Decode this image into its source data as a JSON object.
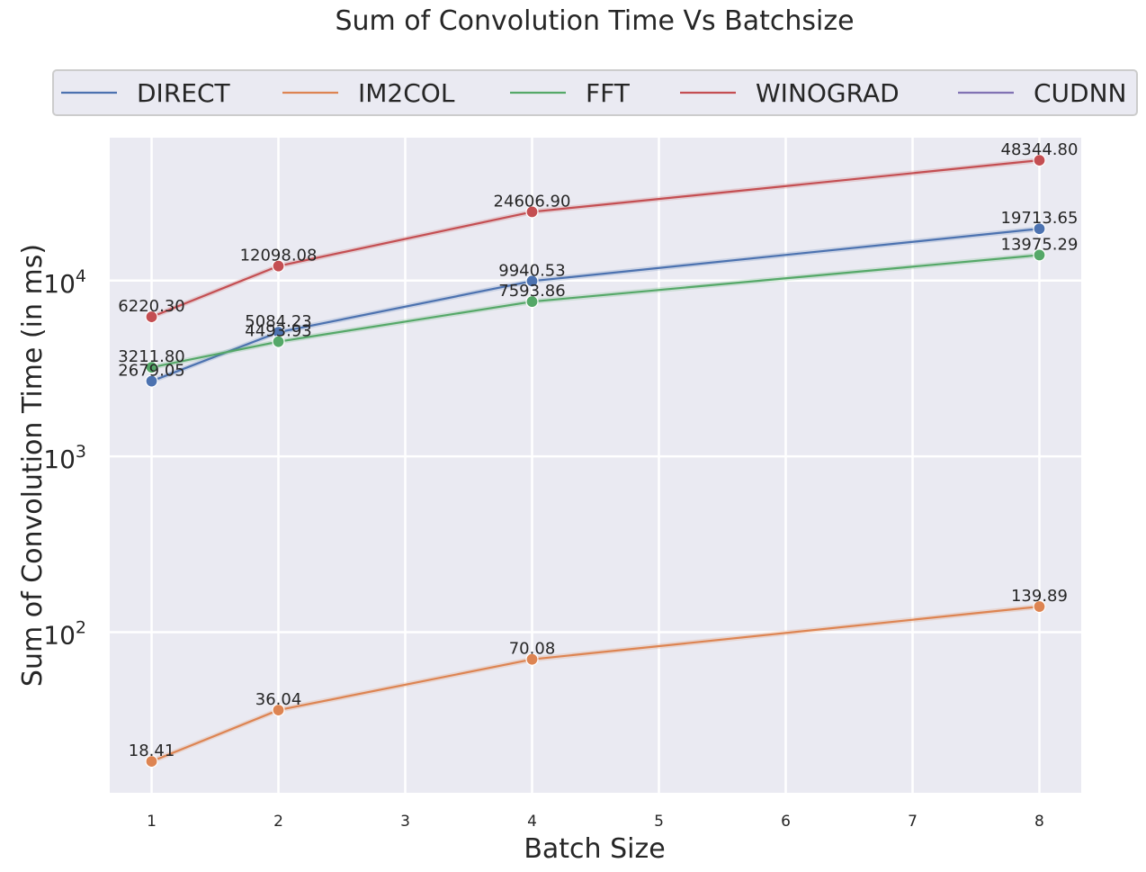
{
  "chart_data": {
    "type": "line",
    "title": "Sum of Convolution Time Vs Batchsize",
    "xlabel": "Batch Size",
    "ylabel": "Sum of Convolution Time (in ms)",
    "yscale": "log",
    "xlim": [
      0.67,
      8.33
    ],
    "ylim": [
      12.2,
      65000
    ],
    "x_ticks": [
      1,
      2,
      3,
      4,
      5,
      6,
      7,
      8
    ],
    "y_ticks": [
      {
        "value": 100,
        "base": "10",
        "exp": "2"
      },
      {
        "value": 1000,
        "base": "10",
        "exp": "3"
      },
      {
        "value": 10000,
        "base": "10",
        "exp": "4"
      }
    ],
    "grid": true,
    "legend_position": "top",
    "series": [
      {
        "name": "DIRECT",
        "color": "#4c72b0",
        "x": [
          1,
          2,
          4,
          8
        ],
        "values": [
          2679.05,
          5084.23,
          9940.53,
          19713.65
        ],
        "labels": [
          "2679.05",
          "5084.23",
          "9940.53",
          "19713.65"
        ]
      },
      {
        "name": "IM2COL",
        "color": "#dd8452",
        "x": [
          1,
          2,
          4,
          8
        ],
        "values": [
          18.41,
          36.04,
          70.08,
          139.89
        ],
        "labels": [
          "18.41",
          "36.04",
          "70.08",
          "139.89"
        ]
      },
      {
        "name": "FFT",
        "color": "#55a868",
        "x": [
          1,
          2,
          4,
          8
        ],
        "values": [
          3211.8,
          4493.93,
          7593.86,
          13975.29
        ],
        "labels": [
          "3211.80",
          "4493.93",
          "7593.86",
          "13975.29"
        ]
      },
      {
        "name": "WINOGRAD",
        "color": "#c44e52",
        "x": [
          1,
          2,
          4,
          8
        ],
        "values": [
          6220.3,
          12098.08,
          24606.9,
          48344.8
        ],
        "labels": [
          "6220.30",
          "12098.08",
          "24606.90",
          "48344.80"
        ]
      },
      {
        "name": "CUDNN",
        "color": "#8172b3",
        "x": [],
        "values": [],
        "labels": []
      }
    ]
  }
}
